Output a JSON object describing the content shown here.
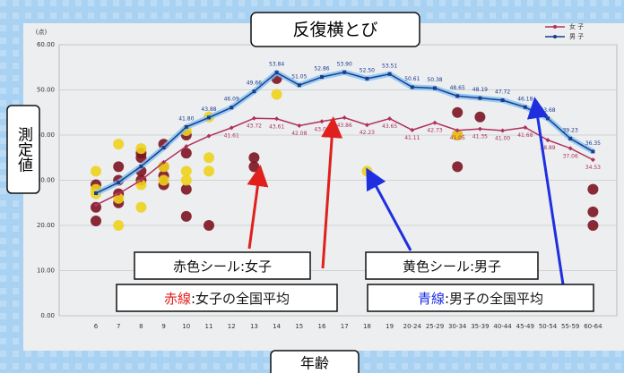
{
  "chart_data": {
    "type": "line",
    "title": "反復横とび",
    "y_label": "測定値",
    "x_label": "年齢",
    "y_unit": "(点)",
    "categories": [
      "6",
      "7",
      "8",
      "9",
      "10",
      "11",
      "12",
      "13",
      "14",
      "15",
      "16",
      "17",
      "18",
      "19",
      "20-24",
      "25-29",
      "30-34",
      "35-39",
      "40-44",
      "45-49",
      "50-54",
      "55-59",
      "60-64"
    ],
    "ylim": [
      0,
      60
    ],
    "yticks": [
      {
        "value": 0,
        "label": "0.00"
      },
      {
        "value": 10,
        "label": "10.00"
      },
      {
        "value": 20,
        "label": "20.00"
      },
      {
        "value": 30,
        "label": "30.00"
      },
      {
        "value": 40,
        "label": "40.00"
      },
      {
        "value": 50,
        "label": "50.00"
      },
      {
        "value": 60,
        "label": "60.00"
      }
    ],
    "grid": true,
    "legend": "top-right",
    "series": [
      {
        "name": "女 子",
        "color": "#b0305a",
        "values": [
          24.5,
          27.0,
          30.0,
          34.0,
          37.5,
          39.8,
          41.61,
          43.72,
          43.61,
          42.08,
          43.01,
          43.86,
          42.23,
          43.65,
          41.11,
          42.73,
          41.05,
          41.35,
          41.0,
          41.68,
          38.89,
          37.06,
          34.53
        ],
        "value_labels": [
          null,
          null,
          null,
          null,
          null,
          null,
          "41.61",
          "43.72",
          "43.61",
          "42.08",
          "43.01",
          "43.86",
          "42.23",
          "43.65",
          "41.11",
          "42.73",
          "41.05",
          "41.35",
          "41.00",
          "41.68",
          "38.89",
          "37.06",
          "34.53"
        ]
      },
      {
        "name": "男 子",
        "color": "#1c3c8c",
        "values": [
          27.12,
          29.5,
          33.08,
          37.2,
          41.8,
          43.88,
          46.09,
          49.66,
          53.84,
          51.05,
          52.86,
          53.9,
          52.5,
          53.51,
          50.61,
          50.38,
          48.65,
          48.19,
          47.72,
          46.18,
          43.68,
          39.23,
          36.35
        ],
        "value_labels": [
          null,
          null,
          null,
          null,
          "41.80",
          "43.88",
          "46.09",
          "49.66",
          "53.84",
          "51.05",
          "52.86",
          "53.90",
          "52.50",
          "53.51",
          "50.61",
          "50.38",
          "48.65",
          "48.19",
          "47.72",
          "46.18",
          "43.68",
          "39.23",
          "36.35"
        ]
      }
    ],
    "stickers": [
      {
        "color": "#7d1420",
        "x": [
          "6",
          "6",
          "6",
          "7",
          "7",
          "7",
          "7",
          "8",
          "8",
          "8",
          "8",
          "8",
          "9",
          "9",
          "9",
          "9",
          "10",
          "10",
          "10",
          "10",
          "11",
          "13",
          "13",
          "14",
          "30-34",
          "30-34",
          "30-34",
          "35-39",
          "60-64",
          "60-64",
          "60-64"
        ],
        "y": [
          21,
          24,
          29,
          25,
          27,
          30,
          33,
          13,
          30,
          32,
          35,
          36,
          29,
          31,
          33,
          38,
          22,
          28,
          36,
          40,
          20,
          33,
          35,
          52.5,
          45,
          40,
          33,
          44,
          28,
          20,
          23
        ]
      },
      {
        "color": "#efd21c",
        "x": [
          "6",
          "6",
          "6",
          "7",
          "7",
          "7",
          "8",
          "8",
          "8",
          "9",
          "9",
          "10",
          "10",
          "10",
          "11",
          "11",
          "11",
          "14",
          "18",
          "30-34"
        ],
        "y": [
          27,
          28,
          32,
          20,
          26,
          38,
          24,
          29,
          37,
          30,
          33,
          30,
          32,
          41,
          32,
          35,
          44,
          49,
          32,
          40
        ]
      }
    ],
    "annotations": [
      {
        "parts": [
          "赤色シール:女子"
        ]
      },
      {
        "parts": [
          "赤線",
          ":女子の全国平均"
        ]
      },
      {
        "parts": [
          "黄色シール:男子"
        ]
      },
      {
        "parts": [
          "青線",
          ":男子の全国平均"
        ]
      }
    ]
  }
}
